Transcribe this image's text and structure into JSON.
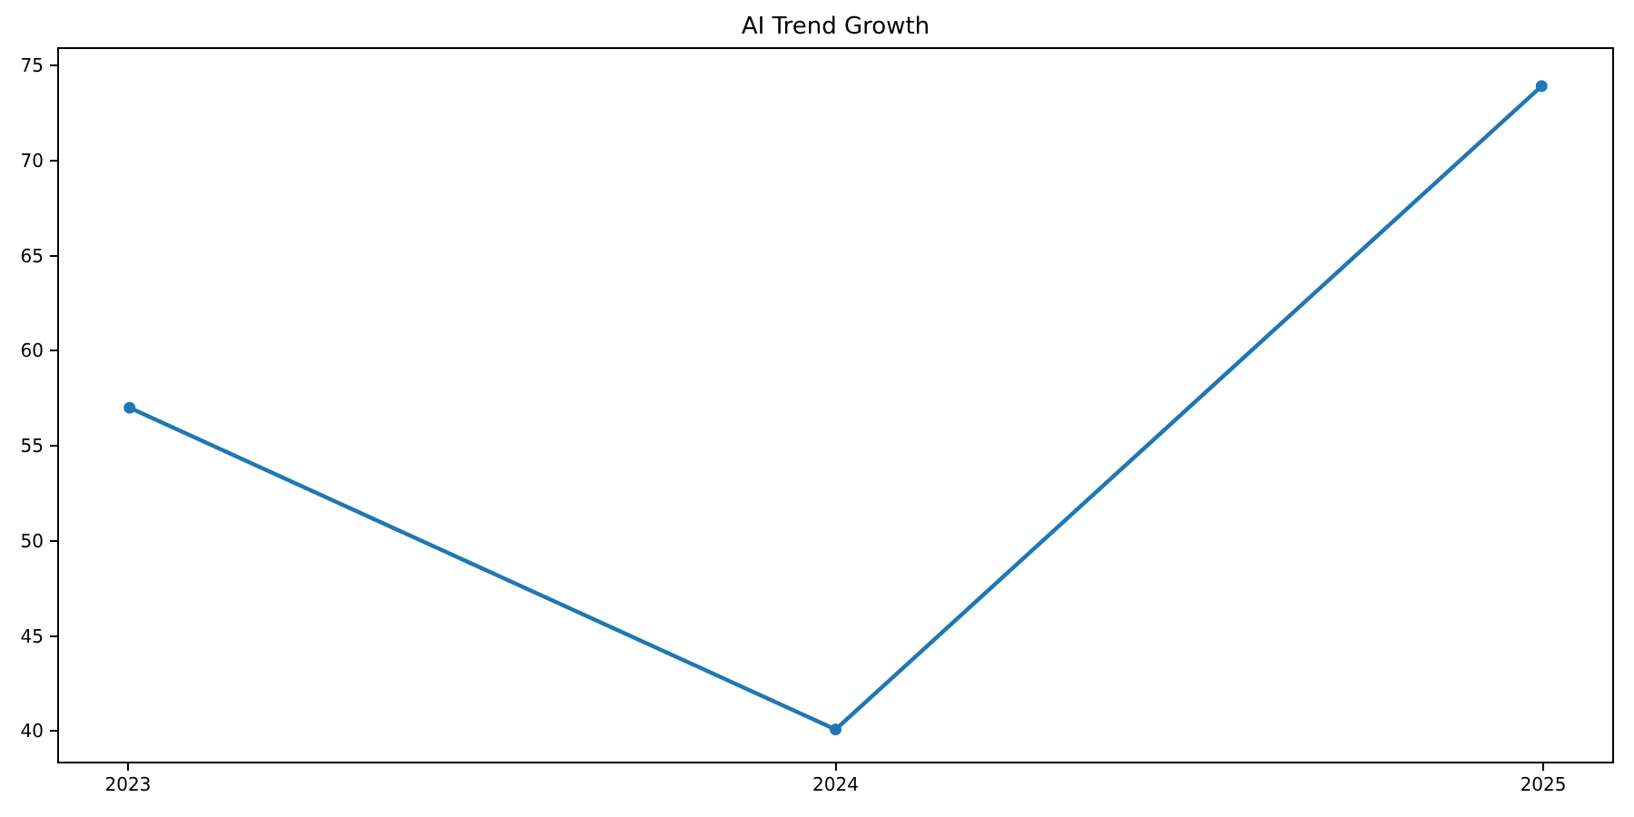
{
  "chart_data": {
    "type": "line",
    "title": "AI Trend Growth",
    "categories": [
      "2023",
      "2024",
      "2025"
    ],
    "x": [
      2023,
      2024,
      2025
    ],
    "values": [
      57,
      40,
      74
    ],
    "xlabel": "",
    "ylabel": "",
    "xlim": [
      2022.9,
      2025.1
    ],
    "ylim": [
      38.3,
      75.96
    ],
    "yticks": [
      40,
      45,
      50,
      55,
      60,
      65,
      70,
      75
    ],
    "grid": false,
    "legend": "none",
    "line_color": "#1f77b4",
    "marker": "circle",
    "line_width": 4.5,
    "marker_radius": 6.5,
    "axis_color": "#000000",
    "text_color": "#000000",
    "background_color": "#ffffff"
  }
}
